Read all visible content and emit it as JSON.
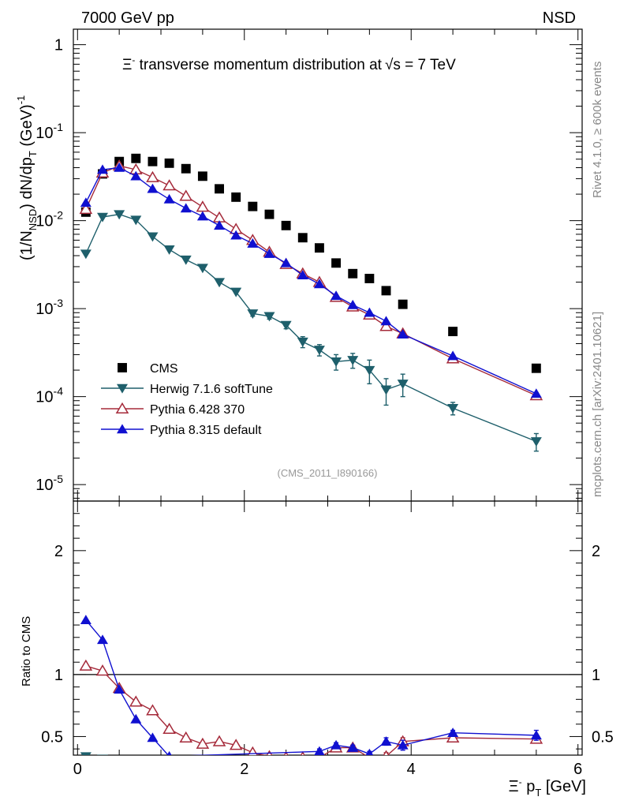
{
  "header": {
    "energy_label": "7000 GeV pp",
    "process_label": "NSD"
  },
  "side_text": {
    "rivet": "Rivet 4.1.0, ≥ 600k events",
    "mcplots": "mcplots.cern.ch [arXiv:2401.10621]"
  },
  "chart_data": [
    {
      "panel": "main",
      "type": "scatter",
      "title": "Ξ⁻ transverse momentum distribution at √s = 7 TeV",
      "title_main": "Ξ",
      "title_sup": "-",
      "title_rest": " transverse momentum distribution at",
      "title_sqrt": "s = 7 TeV",
      "analysis_ref": "(CMS_2011_I890166)",
      "ylabel": "(1/N_NSD) dN/dp_T (GeV)^-1",
      "ylabel_main": "(1/N",
      "ylabel_sub": "NSD",
      "ylabel_mid": ") dN/dp",
      "ylabel_sub2": "T",
      "ylabel_end": " (GeV)",
      "ylabel_sup": "-1",
      "yscale": "log",
      "ylim": [
        6.5e-06,
        1.5
      ],
      "xlim": [
        -0.05,
        6.05
      ],
      "x_ticks": [
        0,
        2,
        4,
        6
      ],
      "y_tick_labels": [
        {
          "value": 1,
          "base": "1",
          "exp": ""
        },
        {
          "value": 0.1,
          "base": "10",
          "exp": "-1"
        },
        {
          "value": 0.01,
          "base": "10",
          "exp": "-2"
        },
        {
          "value": 0.001,
          "base": "10",
          "exp": "-3"
        },
        {
          "value": 0.0001,
          "base": "10",
          "exp": "-4"
        },
        {
          "value": 1e-05,
          "base": "10",
          "exp": "-5"
        }
      ],
      "legend_position": "lower-left",
      "series": [
        {
          "name": "CMS",
          "marker": "square",
          "color": "#000000",
          "line": false,
          "x": [
            0.1,
            0.3,
            0.5,
            0.7,
            0.9,
            1.1,
            1.3,
            1.5,
            1.7,
            1.9,
            2.1,
            2.3,
            2.5,
            2.7,
            2.9,
            3.1,
            3.3,
            3.5,
            3.7,
            3.9,
            4.5,
            5.5
          ],
          "y": [
            0.0125,
            0.034,
            0.047,
            0.051,
            0.047,
            0.045,
            0.039,
            0.032,
            0.023,
            0.0185,
            0.0145,
            0.0118,
            0.0088,
            0.0064,
            0.0049,
            0.0033,
            0.0025,
            0.0022,
            0.0016,
            0.00112,
            0.00055,
            0.00021
          ]
        },
        {
          "name": "Herwig 7.1.6 softTune",
          "marker": "triangle-down",
          "color": "#1e5f6b",
          "line": true,
          "x": [
            0.1,
            0.3,
            0.5,
            0.7,
            0.9,
            1.1,
            1.3,
            1.5,
            1.7,
            1.9,
            2.1,
            2.3,
            2.5,
            2.7,
            2.9,
            3.1,
            3.3,
            3.5,
            3.7,
            3.9,
            4.5,
            5.5
          ],
          "y": [
            0.0042,
            0.011,
            0.0118,
            0.0102,
            0.0066,
            0.0047,
            0.0036,
            0.0029,
            0.002,
            0.00155,
            0.00088,
            0.00082,
            0.00065,
            0.00042,
            0.00034,
            0.00025,
            0.00026,
            0.0002,
            0.00012,
            0.00014,
            7.4e-05,
            3.1e-05
          ],
          "err": [
            0,
            0,
            0,
            0,
            0,
            0,
            0,
            0,
            0,
            0,
            6e-05,
            6e-05,
            6e-05,
            6e-05,
            5e-05,
            5e-05,
            5e-05,
            6e-05,
            4e-05,
            4e-05,
            1.2e-05,
            7e-06
          ]
        },
        {
          "name": "Pythia 6.428 370",
          "marker": "triangle-open",
          "color": "#a52a3a",
          "line": true,
          "x": [
            0.1,
            0.3,
            0.5,
            0.7,
            0.9,
            1.1,
            1.3,
            1.5,
            1.7,
            1.9,
            2.1,
            2.3,
            2.5,
            2.7,
            2.9,
            3.1,
            3.3,
            3.5,
            3.7,
            3.9,
            4.5,
            5.5
          ],
          "y": [
            0.0135,
            0.035,
            0.042,
            0.038,
            0.031,
            0.025,
            0.019,
            0.0143,
            0.0108,
            0.008,
            0.006,
            0.0044,
            0.0032,
            0.0025,
            0.002,
            0.00135,
            0.00105,
            0.00085,
            0.00063,
            0.00052,
            0.00027,
            0.000103
          ],
          "err": [
            0,
            0,
            0,
            0,
            0,
            0,
            0,
            0,
            0,
            0,
            0,
            0,
            0,
            0,
            0,
            5e-05,
            4e-05,
            4e-05,
            4e-05,
            3e-05,
            2e-05,
            8e-06
          ]
        },
        {
          "name": "Pythia 8.315 default",
          "marker": "triangle-up",
          "color": "#1010d0",
          "line": true,
          "x": [
            0.1,
            0.3,
            0.5,
            0.7,
            0.9,
            1.1,
            1.3,
            1.5,
            1.7,
            1.9,
            2.1,
            2.3,
            2.5,
            2.7,
            2.9,
            3.1,
            3.3,
            3.5,
            3.7,
            3.9,
            4.5,
            5.5
          ],
          "y": [
            0.016,
            0.038,
            0.04,
            0.032,
            0.023,
            0.0175,
            0.0138,
            0.0112,
            0.0088,
            0.0068,
            0.0055,
            0.0042,
            0.0033,
            0.0024,
            0.0019,
            0.0014,
            0.0011,
            0.0009,
            0.00072,
            0.00051,
            0.00029,
            0.000108
          ],
          "err": [
            0,
            0,
            0,
            0,
            0,
            0,
            0,
            0,
            0,
            0,
            0,
            0,
            0,
            0,
            0,
            0,
            0,
            0,
            0,
            0,
            0,
            0
          ]
        }
      ]
    },
    {
      "panel": "ratio",
      "type": "line",
      "ylabel": "Ratio to CMS",
      "xlabel": "Ξ⁻ p_T [GeV]",
      "xlabel_main": "Ξ",
      "xlabel_sup": "-",
      "xlabel_mid": " p",
      "xlabel_sub": "T",
      "xlabel_end": " [GeV]",
      "ylim": [
        0.35,
        2.4
      ],
      "y_ticks": [
        0.5,
        1,
        2
      ],
      "y_tick_labels": [
        "0.5",
        "1",
        "2"
      ],
      "x_ticks": [
        0,
        2,
        4,
        6
      ],
      "x_tick_labels": [
        "0",
        "2",
        "4",
        "6"
      ],
      "reference_line": 1,
      "series": [
        {
          "name": "Herwig 7.1.6 softTune",
          "color": "#1e5f6b",
          "marker": "triangle-down",
          "x": [
            0.1,
            0.3
          ],
          "y": [
            0.34,
            0.32
          ],
          "err": [
            0,
            0
          ]
        },
        {
          "name": "Pythia 6.428 370",
          "color": "#a52a3a",
          "marker": "triangle-open",
          "x": [
            0.1,
            0.3,
            0.5,
            0.7,
            0.9,
            1.1,
            1.3,
            1.5,
            1.7,
            1.9,
            2.1,
            2.3,
            2.5,
            2.7,
            2.9,
            3.1,
            3.3,
            3.5,
            3.7,
            3.9,
            4.5,
            5.5
          ],
          "y": [
            1.07,
            1.03,
            0.89,
            0.78,
            0.71,
            0.56,
            0.49,
            0.44,
            0.46,
            0.43,
            0.37,
            0.34,
            0.33,
            0.33,
            0.33,
            0.41,
            0.41,
            0.33,
            0.34,
            0.46,
            0.49,
            0.48
          ],
          "err": [
            0,
            0,
            0,
            0,
            0,
            0,
            0,
            0,
            0,
            0,
            0,
            0,
            0,
            0,
            0,
            0.02,
            0.02,
            0.02,
            0.03,
            0.03,
            0.02,
            0.03
          ]
        },
        {
          "name": "Pythia 8.315 default",
          "color": "#1010d0",
          "marker": "triangle-up",
          "x": [
            0.1,
            0.3,
            0.5,
            0.7,
            0.9,
            1.1,
            2.9,
            3.1,
            3.3,
            3.5,
            3.7,
            3.9,
            4.5,
            5.5
          ],
          "y": [
            1.44,
            1.28,
            0.88,
            0.64,
            0.49,
            0.34,
            0.38,
            0.43,
            0.41,
            0.36,
            0.46,
            0.43,
            0.53,
            0.51
          ],
          "err": [
            0,
            0,
            0,
            0,
            0,
            0,
            0.02,
            0.02,
            0.02,
            0.02,
            0.03,
            0.04,
            0.02,
            0.04
          ]
        }
      ]
    }
  ]
}
